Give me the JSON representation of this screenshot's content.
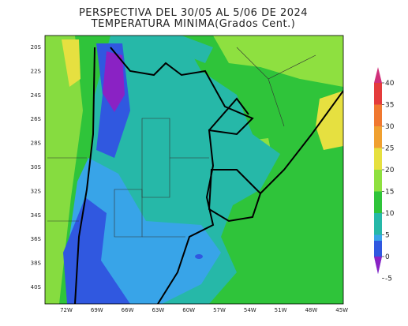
{
  "header": {
    "title": "PERSPECTIVA DEL 30/05 AL 5/06 DE 2024",
    "subtitle": "TEMPERATURA MINIMA(Grados Cent.)"
  },
  "map": {
    "lat_labels": [
      "20S",
      "22S",
      "24S",
      "26S",
      "28S",
      "30S",
      "32S",
      "34S",
      "36S",
      "38S",
      "40S"
    ],
    "lon_labels": [
      "72W",
      "69W",
      "66W",
      "63W",
      "60W",
      "57W",
      "54W",
      "51W",
      "48W",
      "45W"
    ]
  },
  "legend": {
    "ticks": [
      40,
      35,
      30,
      25,
      20,
      15,
      10,
      5,
      0,
      -5
    ]
  }
}
